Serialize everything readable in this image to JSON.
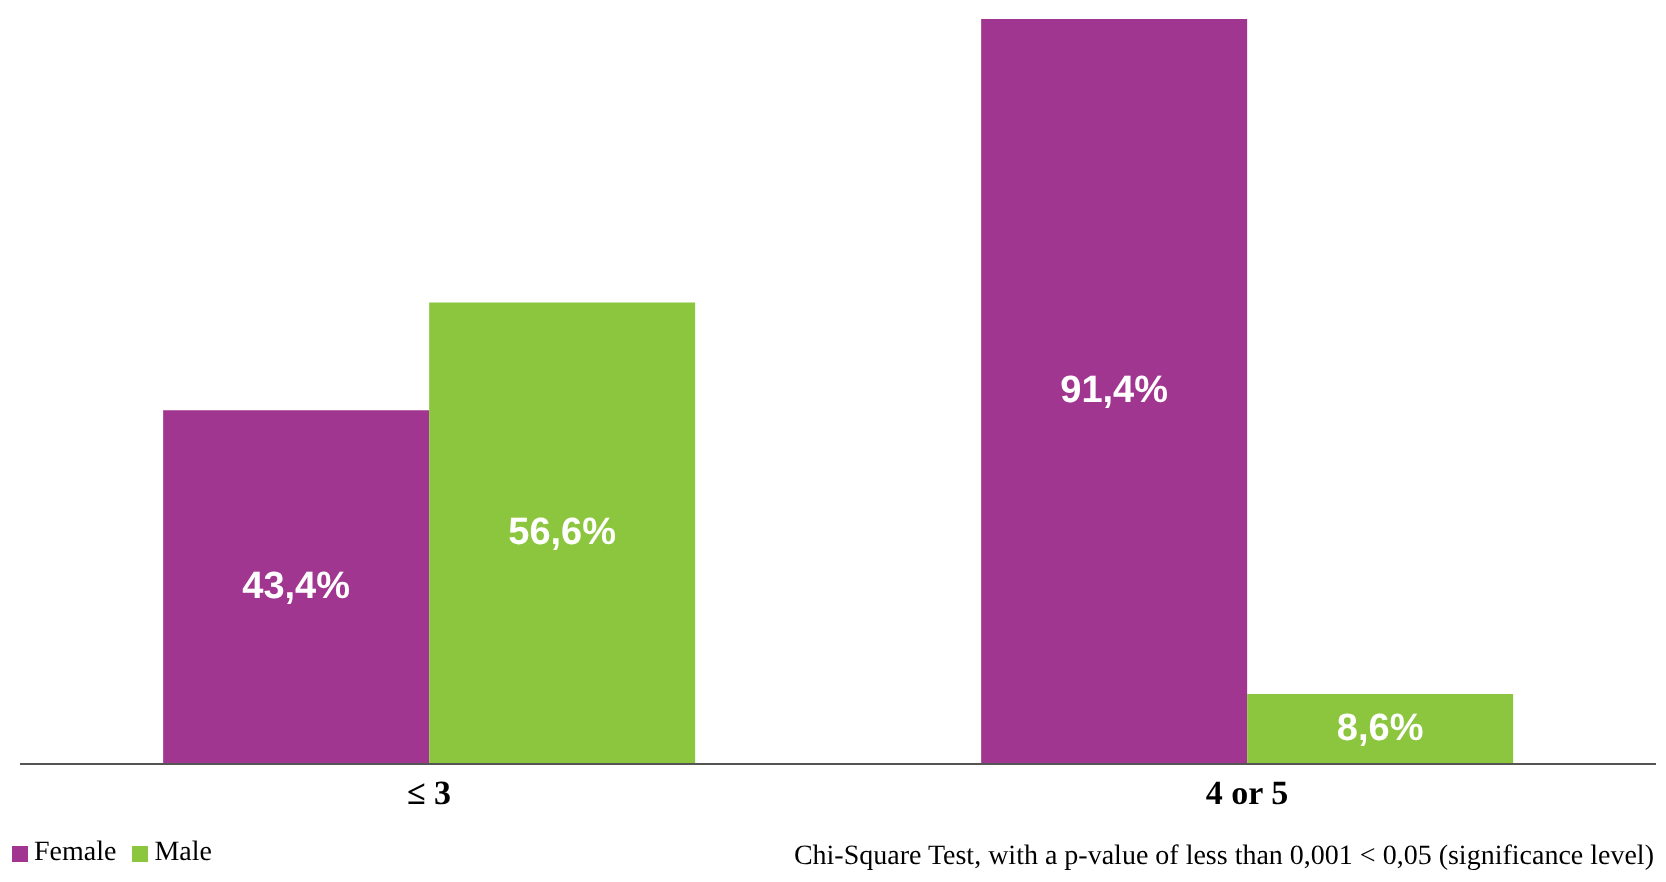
{
  "chart_data": {
    "type": "bar",
    "categories": [
      "≤ 3",
      "4 or 5"
    ],
    "series": [
      {
        "name": "Female",
        "color": "#a0368f",
        "values": [
          43.4,
          91.4
        ],
        "value_labels": [
          "43,4%",
          "91,4%"
        ]
      },
      {
        "name": "Male",
        "color": "#8cc63f",
        "values": [
          56.6,
          8.6
        ],
        "value_labels": [
          "56,6%",
          "8,6%"
        ]
      }
    ],
    "ylim": [
      0,
      92
    ],
    "legend": "bottom left",
    "grid": false,
    "tick_labels": "x",
    "annotations": [
      "Chi-Square Test, with a p-value of less than 0,001 < 0,05 (significance level)"
    ]
  }
}
